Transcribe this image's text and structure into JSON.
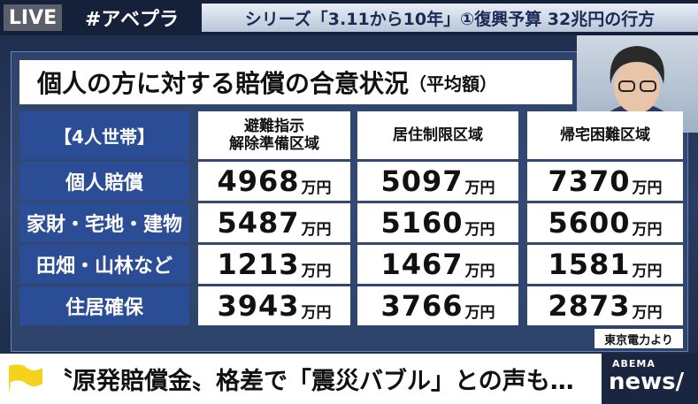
{
  "top_bar": {
    "live": "LIVE",
    "hashtag": "#アベプラ",
    "series_title": "シリーズ「3.11から10年」①復興予算 32兆円の行方"
  },
  "table": {
    "title": "個人の方に対する賠償の合意状況",
    "subtitle": "（平均額）",
    "header": [
      "【4人世帯】",
      "避難指示\n解除準備区域",
      "居住制限区域",
      "帰宅困難区域"
    ],
    "unit": "万円",
    "rows": [
      {
        "label": "個人賠償",
        "values": [
          4968,
          5097,
          7370
        ]
      },
      {
        "label": "家財・宅地・建物",
        "values": [
          5487,
          5160,
          5600
        ]
      },
      {
        "label": "田畑・山林など",
        "values": [
          1213,
          1467,
          1581
        ]
      },
      {
        "label": "住居確保",
        "values": [
          3943,
          3766,
          2873
        ]
      }
    ],
    "source": "東京電力より"
  },
  "headline": "〝原発賠償金〟格差で「震災バブル」との声も…",
  "logo": {
    "brand": "ABEMA",
    "channel": "news/"
  }
}
